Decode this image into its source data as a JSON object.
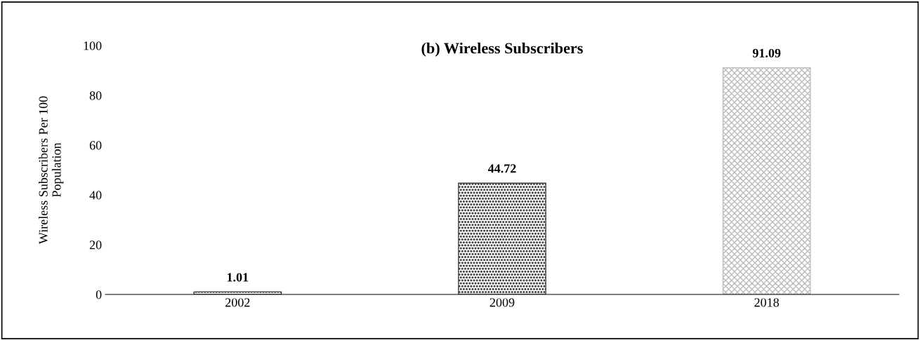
{
  "chart_data": {
    "type": "bar",
    "title": "(b) Wireless Subscribers",
    "ylabel": "Wireless Subscribers Per 100\nPopulation",
    "categories": [
      "2002",
      "2009",
      "2018"
    ],
    "values": [
      1.01,
      44.72,
      91.09
    ],
    "colors": [
      "#333333",
      "#444444",
      "#bbbbbb"
    ],
    "ylim": [
      0,
      100
    ],
    "yticks": [
      0,
      20,
      40,
      60,
      80,
      100
    ],
    "grid": false,
    "data_labels": true
  }
}
